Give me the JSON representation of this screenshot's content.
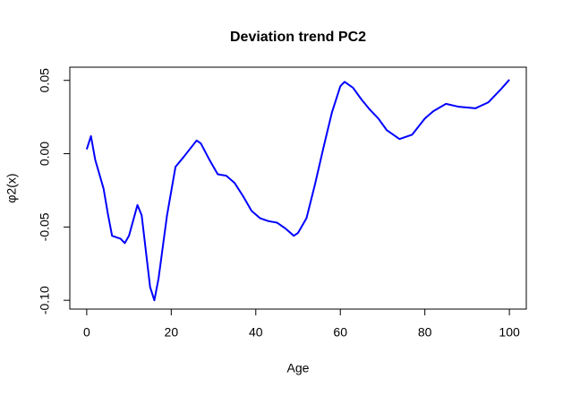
{
  "chart_data": {
    "type": "line",
    "title": "Deviation trend PC2",
    "xlabel": "Age",
    "ylabel": "φ2(x)",
    "x": [
      0,
      1,
      2,
      4,
      5,
      6,
      8,
      9,
      10,
      12,
      13,
      15,
      16,
      17,
      19,
      21,
      23,
      26,
      27,
      29,
      31,
      33,
      35,
      37,
      39,
      41,
      43,
      45,
      47,
      49,
      50,
      52,
      54,
      56,
      58,
      60,
      61,
      63,
      65,
      67,
      69,
      71,
      74,
      77,
      80,
      82,
      85,
      88,
      92,
      95,
      98,
      100
    ],
    "series": [
      {
        "name": "PC2",
        "color": "#0000ff",
        "values": [
          0.003,
          0.012,
          -0.004,
          -0.024,
          -0.041,
          -0.056,
          -0.058,
          -0.061,
          -0.056,
          -0.035,
          -0.042,
          -0.091,
          -0.1,
          -0.085,
          -0.042,
          -0.009,
          -0.002,
          0.009,
          0.007,
          -0.004,
          -0.014,
          -0.015,
          -0.02,
          -0.029,
          -0.039,
          -0.044,
          -0.046,
          -0.047,
          -0.051,
          -0.056,
          -0.054,
          -0.044,
          -0.021,
          0.004,
          0.028,
          0.046,
          0.049,
          0.045,
          0.037,
          0.03,
          0.024,
          0.016,
          0.01,
          0.013,
          0.024,
          0.029,
          0.034,
          0.032,
          0.031,
          0.035,
          0.044,
          0.0505
        ]
      }
    ],
    "xlim": [
      -4,
      104
    ],
    "xticks": [
      0,
      20,
      40,
      60,
      80,
      100
    ],
    "ylim": [
      -0.106,
      0.059
    ],
    "yticks": [
      {
        "value": -0.1,
        "label": "-0.10"
      },
      -0.05,
      {
        "value": 0,
        "label": "0.00"
      },
      0.05
    ]
  }
}
